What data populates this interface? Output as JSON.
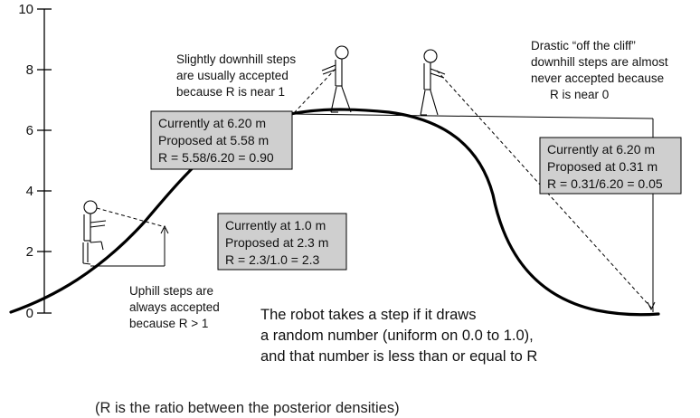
{
  "y_axis": {
    "ticks": [
      "10",
      "8",
      "6",
      "4",
      "2",
      "0"
    ]
  },
  "notes": {
    "slight": [
      "Slightly downhill steps",
      "are usually accepted",
      "because R is near 1"
    ],
    "drastic": [
      "Drastic “off the cliff”",
      "downhill steps are almost",
      "never accepted because",
      "R is near 0"
    ],
    "uphill": [
      "Uphill steps are",
      "always accepted",
      "because R > 1"
    ]
  },
  "boxes": {
    "slight": [
      "Currently at 6.20 m",
      "Proposed at 5.58 m",
      "R = 5.58/6.20 = 0.90"
    ],
    "uphill": [
      "Currently at 1.0 m",
      "Proposed at 2.3 m",
      "R = 2.3/1.0 = 2.3"
    ],
    "drastic": [
      "Currently at 6.20 m",
      "Proposed at 0.31 m",
      "R = 0.31/6.20 = 0.05"
    ]
  },
  "rule": [
    "The robot takes a step if it draws",
    "a random number (uniform on 0.0 to 1.0),",
    "and that number is less than or equal to R"
  ],
  "footnote": "(R is the ratio between the posterior densities)",
  "colors": {
    "box_fill": "#cfcfcf",
    "line": "#000000",
    "text": "#111111"
  }
}
